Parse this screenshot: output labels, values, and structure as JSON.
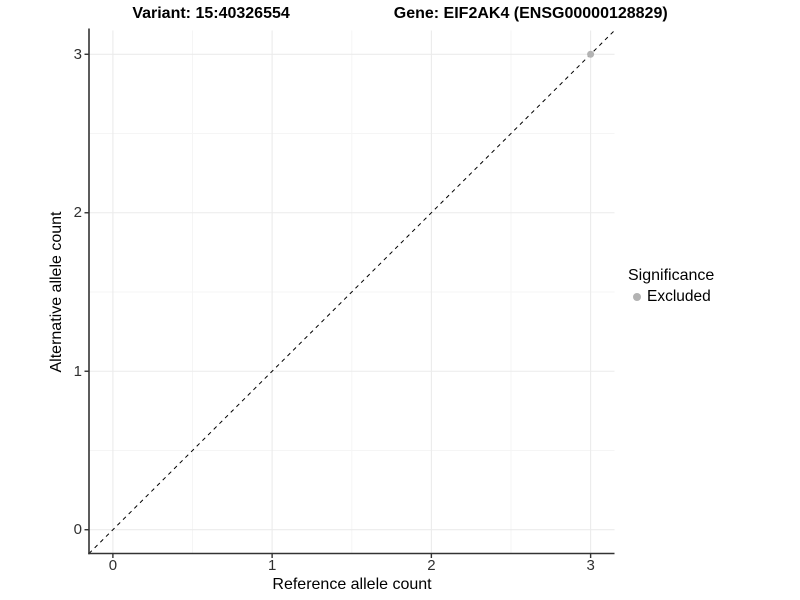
{
  "titles": {
    "variant": "Variant: 15:40326554",
    "gene": "Gene: EIF2AK4 (ENSG00000128829)"
  },
  "chart_data": {
    "type": "scatter",
    "title_left": "Variant: 15:40326554",
    "title_right": "Gene: EIF2AK4 (ENSG00000128829)",
    "xlabel": "Reference allele count",
    "ylabel": "Alternative allele count",
    "xlim": [
      -0.15,
      3.15
    ],
    "ylim": [
      -0.15,
      3.15
    ],
    "x_ticks": [
      0,
      1,
      2,
      3
    ],
    "y_ticks": [
      0,
      1,
      2,
      3
    ],
    "x_minor_gridlines": [
      0.5,
      1.5,
      2.5
    ],
    "y_minor_gridlines": [
      0.5,
      1.5,
      2.5
    ],
    "grid": true,
    "reference_line": {
      "type": "identity",
      "style": "dashed",
      "color": "#000000"
    },
    "series": [
      {
        "name": "Excluded",
        "color": "#b3b3b3",
        "points": [
          {
            "x": 3,
            "y": 3
          }
        ]
      }
    ],
    "legend": {
      "title": "Significance",
      "position": "right",
      "items": [
        {
          "label": "Excluded",
          "color": "#b3b3b3"
        }
      ]
    }
  },
  "colors": {
    "background": "#ffffff",
    "grid_major": "#ebebeb",
    "grid_minor": "#f5f5f5",
    "axis_line": "#333333",
    "tick_text": "#303030",
    "point_gray": "#b3b3b3"
  }
}
